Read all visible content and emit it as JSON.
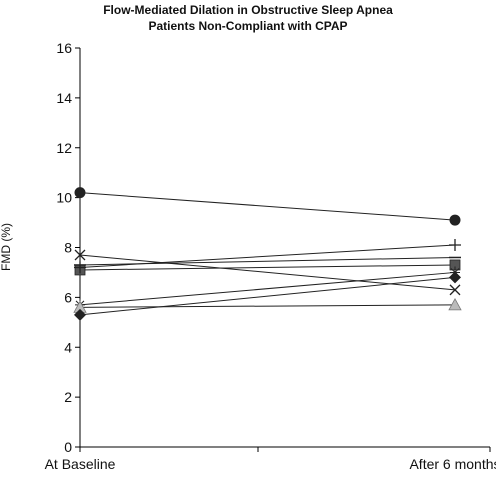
{
  "chart_data": {
    "type": "line",
    "title_lines": [
      "Flow-Mediated Dilation in Obstructive Sleep Apnea",
      "Patients Non-Compliant with CPAP"
    ],
    "xlabel": "",
    "ylabel": "FMD (%)",
    "categories": [
      "At Baseline",
      "After 6 months"
    ],
    "ylim": [
      0,
      16
    ],
    "yticks": [
      0,
      2,
      4,
      6,
      8,
      10,
      12,
      14,
      16
    ],
    "grid": false,
    "legend": "none",
    "colors": {
      "line": "#222222",
      "marker_dark": "#222222",
      "marker_square": "#555555",
      "marker_triangle": "#bbbbbb",
      "axis": "#000000"
    },
    "series": [
      {
        "marker": "circle",
        "values": [
          10.2,
          9.1
        ]
      },
      {
        "marker": "x",
        "values": [
          7.7,
          6.3
        ]
      },
      {
        "marker": "square",
        "values": [
          7.1,
          7.3
        ]
      },
      {
        "marker": "plus",
        "values": [
          7.2,
          8.1
        ]
      },
      {
        "marker": "dash",
        "values": [
          7.3,
          7.6
        ]
      },
      {
        "marker": "star",
        "values": [
          5.7,
          7.0
        ]
      },
      {
        "marker": "triangle",
        "values": [
          5.6,
          5.7
        ]
      },
      {
        "marker": "diamond",
        "values": [
          5.3,
          6.8
        ]
      }
    ]
  }
}
